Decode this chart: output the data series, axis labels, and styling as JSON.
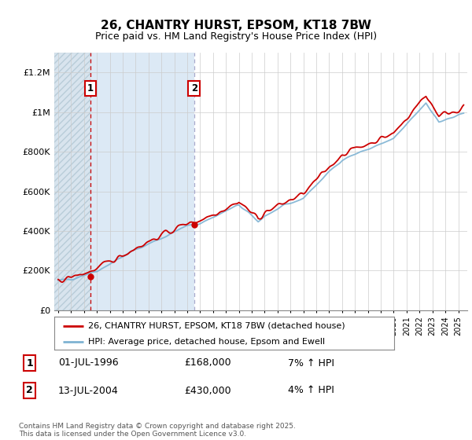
{
  "title": "26, CHANTRY HURST, EPSOM, KT18 7BW",
  "subtitle": "Price paid vs. HM Land Registry's House Price Index (HPI)",
  "legend_line1": "26, CHANTRY HURST, EPSOM, KT18 7BW (detached house)",
  "legend_line2": "HPI: Average price, detached house, Epsom and Ewell",
  "annotation1_label": "1",
  "annotation1_date": "01-JUL-1996",
  "annotation1_price": "£168,000",
  "annotation1_hpi": "7% ↑ HPI",
  "annotation2_label": "2",
  "annotation2_date": "13-JUL-2004",
  "annotation2_price": "£430,000",
  "annotation2_hpi": "4% ↑ HPI",
  "footer": "Contains HM Land Registry data © Crown copyright and database right 2025.\nThis data is licensed under the Open Government Licence v3.0.",
  "price_color": "#cc0000",
  "hpi_color": "#7fb3d3",
  "annotation_box_color": "#cc0000",
  "background_color": "#ffffff",
  "hatch_bg_color": "#dce6f0",
  "blue_bg_color": "#dce9f5",
  "ylim": [
    0,
    1300000
  ],
  "yticks": [
    0,
    200000,
    400000,
    600000,
    800000,
    1000000,
    1200000
  ],
  "ytick_labels": [
    "£0",
    "£200K",
    "£400K",
    "£600K",
    "£800K",
    "£1M",
    "£1.2M"
  ],
  "sale1_x": 1996.5,
  "sale1_y": 168000,
  "sale2_x": 2004.54,
  "sale2_y": 430000,
  "xlim_start": 1993.7,
  "xlim_end": 2025.7
}
